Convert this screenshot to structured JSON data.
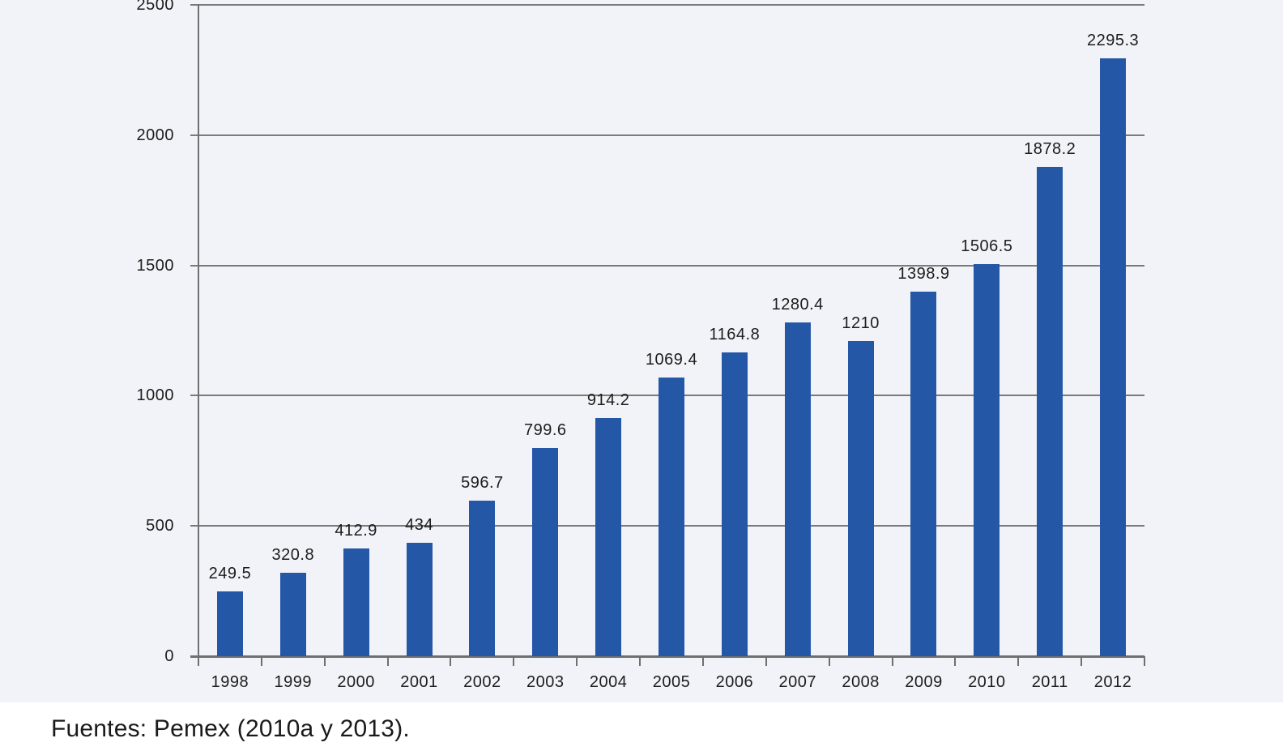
{
  "chart_data": {
    "type": "bar",
    "categories": [
      "1998",
      "1999",
      "2000",
      "2001",
      "2002",
      "2003",
      "2004",
      "2005",
      "2006",
      "2007",
      "2008",
      "2009",
      "2010",
      "2011",
      "2012"
    ],
    "values": [
      249.5,
      320.8,
      412.9,
      434,
      596.7,
      799.6,
      914.2,
      1069.4,
      1164.8,
      1280.4,
      1210,
      1398.9,
      1506.5,
      1878.2,
      2295.3
    ],
    "value_labels": [
      "249.5",
      "320.8",
      "412.9",
      "434",
      "596.7",
      "799.6",
      "914.2",
      "1069.4",
      "1164.8",
      "1280.4",
      "1210",
      "1398.9",
      "1506.5",
      "1878.2",
      "2295.3"
    ],
    "title": "",
    "xlabel": "",
    "ylabel": "",
    "ylim": [
      0,
      2500
    ],
    "yticks": [
      0,
      500,
      1000,
      1500,
      2000,
      2500
    ],
    "ytick_labels": [
      "0",
      "500",
      "1000",
      "1500",
      "2000",
      "2500"
    ],
    "grid": "horizontal",
    "legend_position": "none",
    "colors": {
      "bar": "#2458a7",
      "gridline": "#7a7a7a",
      "axis": "#6f6f6f",
      "text": "#1c1c1c",
      "plot_background": "#f2f3f8",
      "page_background": "#ffffff"
    }
  },
  "footer": {
    "source_text": "Fuentes: Pemex (2010a y 2013)."
  }
}
